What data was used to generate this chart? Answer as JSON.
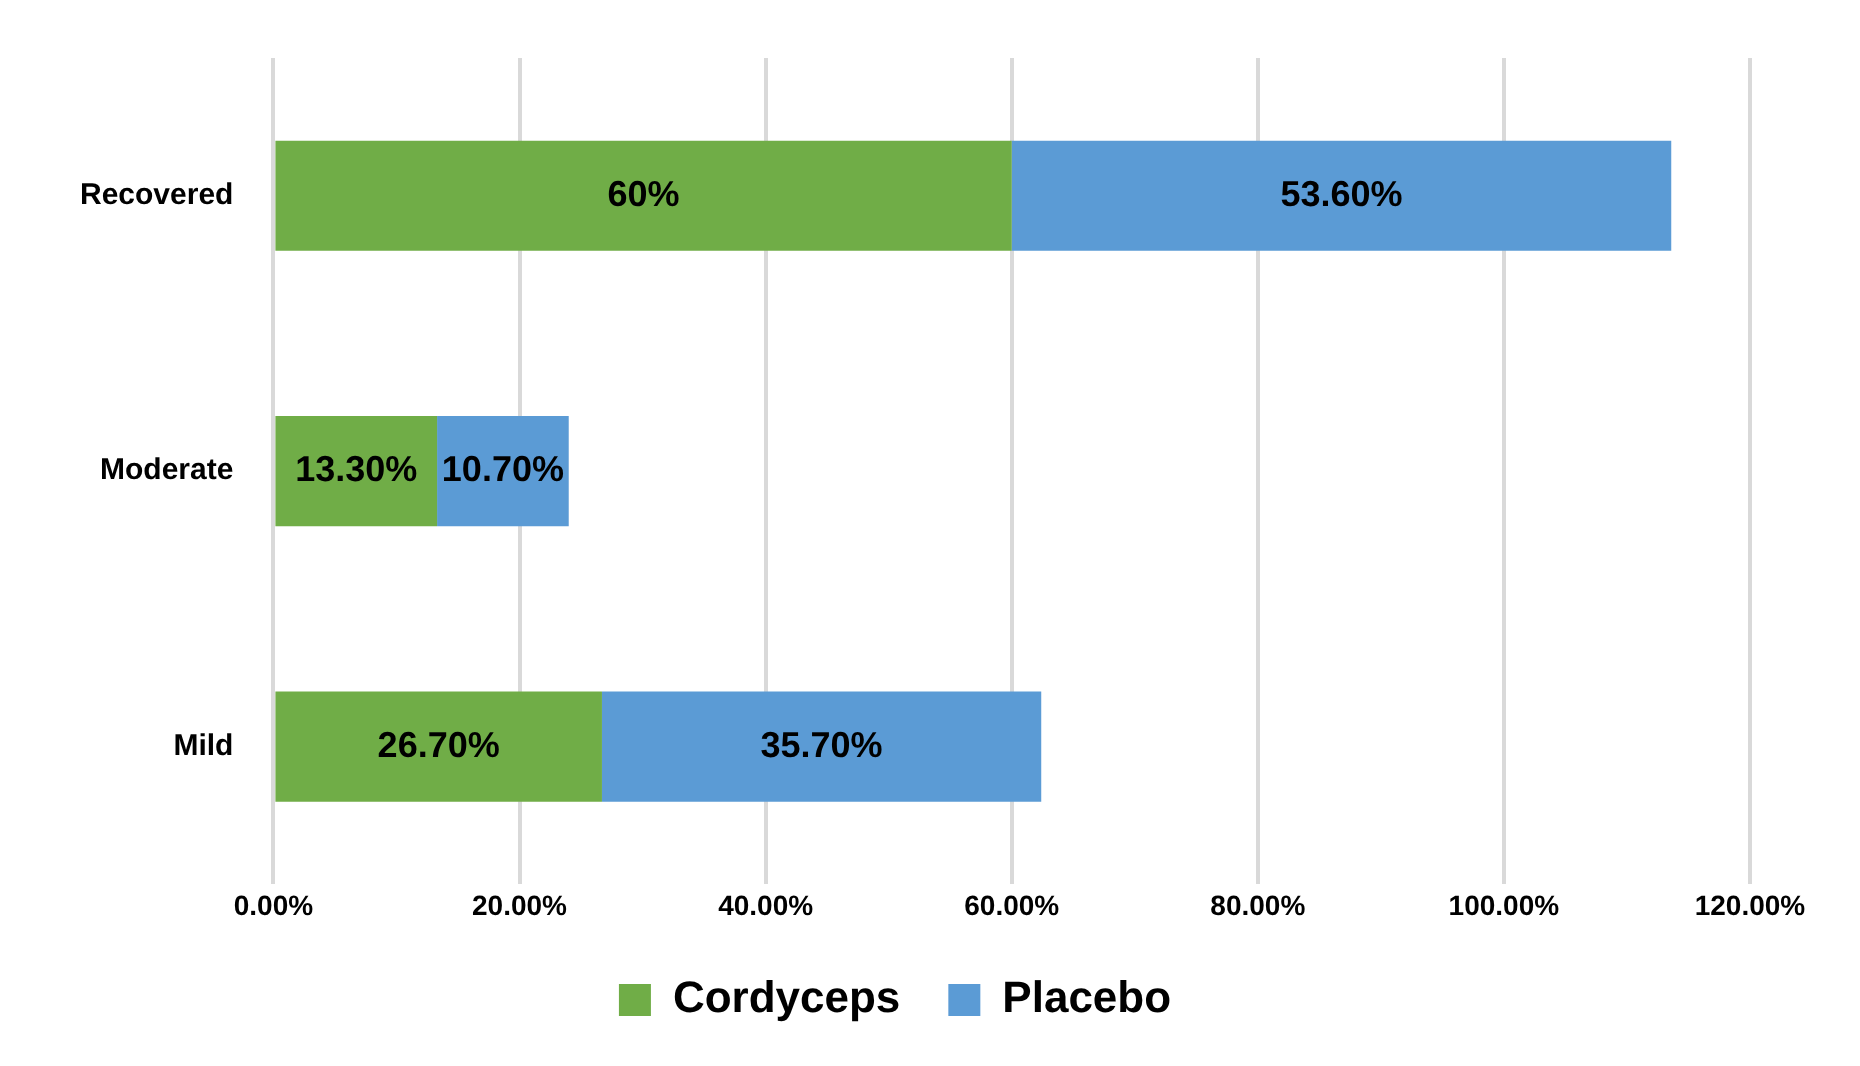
{
  "chart_data": {
    "type": "bar",
    "orientation": "horizontal",
    "stacked": true,
    "categories": [
      "Recovered",
      "Moderate",
      "Mild"
    ],
    "series": [
      {
        "name": "Cordyceps",
        "color": "#70ad47",
        "values": [
          60,
          13.3,
          26.7
        ],
        "value_labels": [
          "60%",
          "13.30%",
          "26.70%"
        ]
      },
      {
        "name": "Placebo",
        "color": "#5b9bd5",
        "values": [
          53.6,
          10.7,
          35.7
        ],
        "value_labels": [
          "53.60%",
          "10.70%",
          "35.70%"
        ]
      }
    ],
    "xlim": [
      0,
      120
    ],
    "xticks": [
      {
        "value": 0,
        "label": "0.00%"
      },
      {
        "value": 20,
        "label": "20.00%"
      },
      {
        "value": 40,
        "label": "40.00%"
      },
      {
        "value": 60,
        "label": "60.00%"
      },
      {
        "value": 80,
        "label": "80.00%"
      },
      {
        "value": 100,
        "label": "100.00%"
      },
      {
        "value": 120,
        "label": "120.00%"
      }
    ],
    "grid": "x",
    "legend": "bottom"
  }
}
